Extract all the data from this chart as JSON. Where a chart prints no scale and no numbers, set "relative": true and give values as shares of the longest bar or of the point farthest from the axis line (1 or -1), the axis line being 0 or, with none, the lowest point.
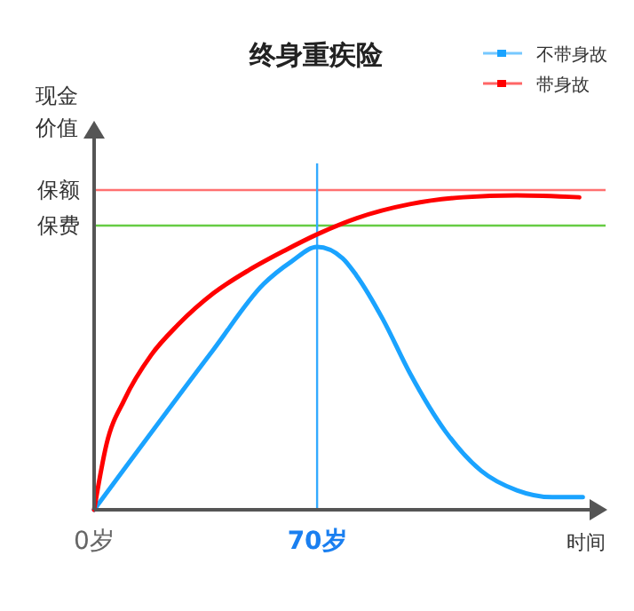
{
  "chart_data": {
    "type": "line",
    "title": "终身重疾险",
    "xlabel": "时间",
    "ylabel": "现金价值",
    "relative": true,
    "xlim": [
      0,
      160
    ],
    "xticks": [
      {
        "value": 0,
        "label": "0岁"
      },
      {
        "value": 70,
        "label": "70岁"
      }
    ],
    "legend": "top right",
    "series": [
      {
        "name": "不带身故",
        "color": "#1aa3ff",
        "x": [
          0,
          37.5,
          53.2,
          62,
          70,
          78,
          82.3,
          90.7,
          99.1,
          110.3,
          121.5,
          132.7,
          143.9,
          153.4
        ],
        "values": [
          0,
          0.51,
          0.718,
          0.79,
          0.836,
          0.8,
          0.746,
          0.605,
          0.435,
          0.249,
          0.124,
          0.062,
          0.04,
          0.04
        ]
      },
      {
        "name": "带身故",
        "color": "#ff0000",
        "x": [
          0,
          3.9,
          9.5,
          17.9,
          26.3,
          37.5,
          48.7,
          59.9,
          70,
          82.3,
          99.1,
          115.9,
          132.7,
          152.3
        ],
        "values": [
          0,
          0.209,
          0.35,
          0.492,
          0.588,
          0.689,
          0.763,
          0.825,
          0.876,
          0.927,
          0.972,
          0.994,
          1,
          0.994
        ]
      }
    ],
    "ref_lines": [
      {
        "axis": "y",
        "value": 1.017,
        "label": "保额",
        "color": "#ff7070"
      },
      {
        "axis": "y",
        "value": 0.904,
        "label": "保费",
        "color": "#66cc44"
      },
      {
        "axis": "x",
        "value": 70,
        "color": "#33aaff"
      }
    ]
  }
}
